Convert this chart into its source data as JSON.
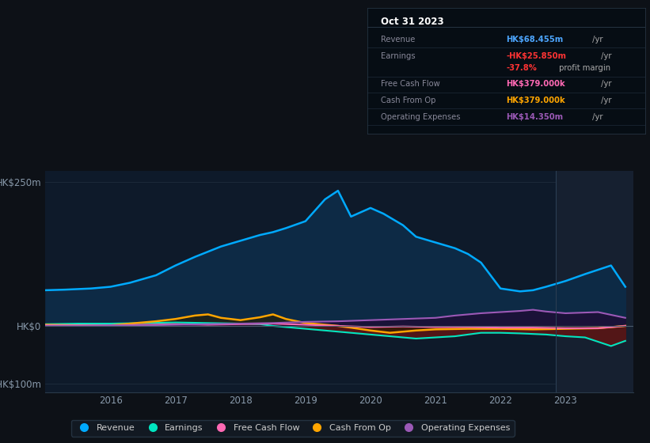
{
  "bg_color": "#0d1117",
  "plot_bg_color": "#0e1a2a",
  "grid_color": "#1e2d3d",
  "revenue_color": "#00aaff",
  "earnings_color": "#00e5c0",
  "fcf_color": "#ff69b4",
  "cashop_color": "#ffa500",
  "opex_color": "#9b59b6",
  "revenue_fill_color": "#0d2a45",
  "earnings_fill_neg_color": "#5a1515",
  "shaded_region_color": "#162030",
  "x_revenue": [
    2015.0,
    2015.3,
    2015.7,
    2016.0,
    2016.3,
    2016.7,
    2017.0,
    2017.3,
    2017.7,
    2018.0,
    2018.3,
    2018.5,
    2018.7,
    2019.0,
    2019.3,
    2019.5,
    2019.7,
    2020.0,
    2020.2,
    2020.5,
    2020.7,
    2021.0,
    2021.3,
    2021.5,
    2021.7,
    2022.0,
    2022.3,
    2022.5,
    2022.7,
    2023.0,
    2023.3,
    2023.7,
    2023.92
  ],
  "y_revenue": [
    62,
    63,
    65,
    68,
    75,
    88,
    105,
    120,
    138,
    148,
    158,
    163,
    170,
    182,
    220,
    235,
    190,
    205,
    195,
    175,
    155,
    145,
    135,
    125,
    110,
    65,
    60,
    62,
    68,
    78,
    90,
    105,
    68
  ],
  "x_earnings": [
    2015.0,
    2015.5,
    2016.0,
    2016.5,
    2017.0,
    2017.5,
    2018.0,
    2018.3,
    2018.5,
    2018.7,
    2019.0,
    2019.3,
    2019.5,
    2019.7,
    2020.0,
    2020.3,
    2020.5,
    2020.7,
    2021.0,
    2021.3,
    2021.5,
    2021.7,
    2022.0,
    2022.3,
    2022.5,
    2022.7,
    2023.0,
    2023.3,
    2023.7,
    2023.92
  ],
  "y_earnings": [
    3,
    4,
    4,
    5,
    6,
    5,
    4,
    3,
    0,
    -2,
    -5,
    -8,
    -10,
    -12,
    -15,
    -18,
    -20,
    -22,
    -20,
    -18,
    -15,
    -12,
    -12,
    -13,
    -14,
    -15,
    -18,
    -20,
    -35,
    -26
  ],
  "x_cashop": [
    2015.0,
    2015.5,
    2016.0,
    2016.3,
    2016.7,
    2017.0,
    2017.3,
    2017.5,
    2017.7,
    2018.0,
    2018.3,
    2018.5,
    2018.7,
    2019.0,
    2019.3,
    2019.5,
    2019.7,
    2020.0,
    2020.3,
    2020.5,
    2020.7,
    2021.0,
    2021.5,
    2022.0,
    2022.5,
    2023.0,
    2023.5,
    2023.92
  ],
  "y_cashop": [
    2,
    1,
    1,
    4,
    8,
    12,
    18,
    20,
    14,
    10,
    15,
    20,
    12,
    5,
    2,
    0,
    -3,
    -8,
    -12,
    -10,
    -8,
    -6,
    -5,
    -5,
    -6,
    -5,
    -4,
    0
  ],
  "x_fcf": [
    2015.0,
    2015.5,
    2016.0,
    2016.5,
    2017.0,
    2017.5,
    2018.0,
    2018.5,
    2019.0,
    2019.5,
    2020.0,
    2020.5,
    2021.0,
    2021.5,
    2022.0,
    2022.5,
    2023.0,
    2023.5,
    2023.92
  ],
  "y_fcf": [
    1,
    1,
    1,
    2,
    3,
    2,
    3,
    4,
    2,
    0,
    -2,
    -1,
    -2,
    -2,
    -3,
    -3,
    -4,
    -4,
    0
  ],
  "x_opex": [
    2015.0,
    2015.5,
    2016.0,
    2016.5,
    2017.0,
    2017.5,
    2018.0,
    2018.5,
    2019.0,
    2019.5,
    2020.0,
    2020.5,
    2021.0,
    2021.3,
    2021.5,
    2021.7,
    2022.0,
    2022.3,
    2022.5,
    2022.7,
    2023.0,
    2023.5,
    2023.92
  ],
  "y_opex": [
    0,
    0,
    1,
    1,
    2,
    3,
    4,
    5,
    7,
    8,
    10,
    12,
    14,
    18,
    20,
    22,
    24,
    26,
    28,
    25,
    22,
    24,
    14
  ],
  "vertical_line_x": 2022.85,
  "ylim": [
    -115,
    270
  ],
  "xlim": [
    2015.0,
    2024.05
  ],
  "ytick_vals": [
    -100,
    0,
    250
  ],
  "ytick_labels": [
    "-HK$100m",
    "HK$0",
    "HK$250m"
  ],
  "xtick_vals": [
    2016,
    2017,
    2018,
    2019,
    2020,
    2021,
    2022,
    2023
  ],
  "xtick_labels": [
    "2016",
    "2017",
    "2018",
    "2019",
    "2020",
    "2021",
    "2022",
    "2023"
  ],
  "tooltip_title": "Oct 31 2023",
  "legend_labels": [
    "Revenue",
    "Earnings",
    "Free Cash Flow",
    "Cash From Op",
    "Operating Expenses"
  ],
  "legend_colors": [
    "#00aaff",
    "#00e5c0",
    "#ff69b4",
    "#ffa500",
    "#9b59b6"
  ]
}
